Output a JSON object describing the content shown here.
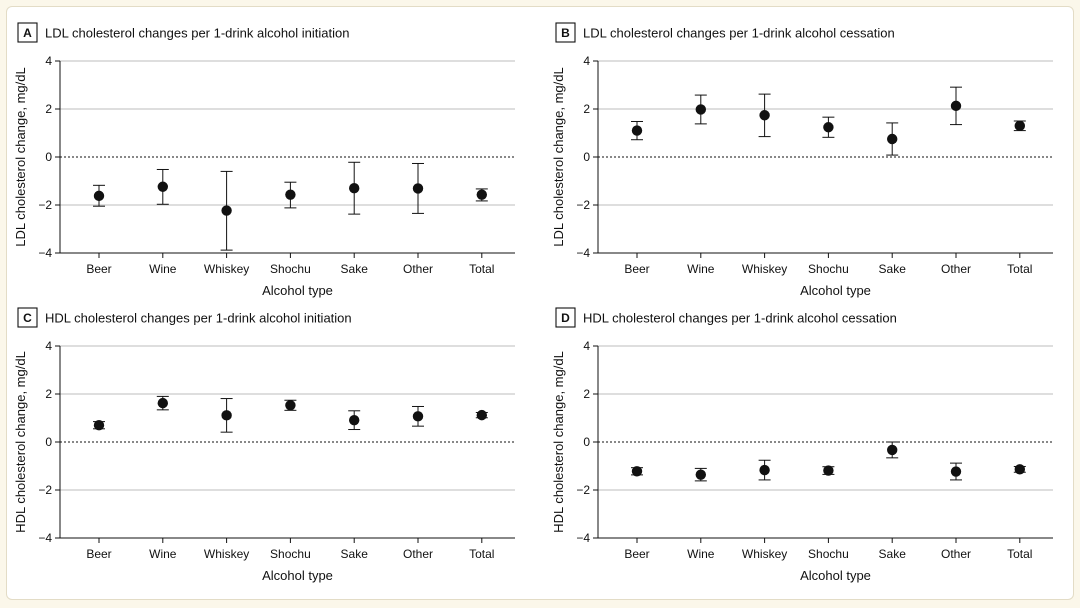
{
  "chart_data": [
    {
      "type": "scatter",
      "panel": "A",
      "title": "LDL cholesterol changes per 1-drink alcohol initiation",
      "xlabel": "Alcohol type",
      "ylabel": "LDL cholesterol change, mg/dL",
      "categories": [
        "Beer",
        "Wine",
        "Whiskey",
        "Shochu",
        "Sake",
        "Other",
        "Total"
      ],
      "values": [
        -1.62,
        -1.24,
        -2.23,
        -1.57,
        -1.3,
        -1.31,
        -1.57
      ],
      "ci_lower": [
        -2.05,
        -1.97,
        -3.88,
        -2.12,
        -2.38,
        -2.35,
        -1.83
      ],
      "ci_upper": [
        -1.18,
        -0.52,
        -0.6,
        -1.05,
        -0.22,
        -0.27,
        -1.33
      ],
      "ylim": [
        -4,
        4
      ],
      "yticks": [
        4,
        2,
        0,
        -2,
        -4
      ],
      "ytick_labels": [
        "4",
        "2",
        "0",
        "−2",
        "−4"
      ],
      "grid": true
    },
    {
      "type": "scatter",
      "panel": "B",
      "title": "LDL cholesterol changes per 1-drink alcohol cessation",
      "xlabel": "Alcohol type",
      "ylabel": "LDL cholesterol change, mg/dL",
      "categories": [
        "Beer",
        "Wine",
        "Whiskey",
        "Shochu",
        "Sake",
        "Other",
        "Total"
      ],
      "values": [
        1.1,
        1.98,
        1.74,
        1.24,
        0.75,
        2.13,
        1.3
      ],
      "ci_lower": [
        0.72,
        1.38,
        0.85,
        0.82,
        0.08,
        1.35,
        1.1
      ],
      "ci_upper": [
        1.48,
        2.58,
        2.62,
        1.66,
        1.42,
        2.91,
        1.5
      ],
      "ylim": [
        -4,
        4
      ],
      "yticks": [
        4,
        2,
        0,
        -2,
        -4
      ],
      "ytick_labels": [
        "4",
        "2",
        "0",
        "−2",
        "−4"
      ],
      "grid": true
    },
    {
      "type": "scatter",
      "panel": "C",
      "title": "HDL cholesterol changes per 1-drink alcohol initiation",
      "xlabel": "Alcohol type",
      "ylabel": "HDL cholesterol change, mg/dL",
      "categories": [
        "Beer",
        "Wine",
        "Whiskey",
        "Shochu",
        "Sake",
        "Other",
        "Total"
      ],
      "values": [
        0.7,
        1.62,
        1.11,
        1.53,
        0.91,
        1.07,
        1.12
      ],
      "ci_lower": [
        0.55,
        1.34,
        0.41,
        1.32,
        0.52,
        0.66,
        1.01
      ],
      "ci_upper": [
        0.85,
        1.9,
        1.81,
        1.74,
        1.3,
        1.48,
        1.23
      ],
      "ylim": [
        -4,
        4
      ],
      "yticks": [
        4,
        2,
        0,
        -2,
        -4
      ],
      "ytick_labels": [
        "4",
        "2",
        "0",
        "−2",
        "−4"
      ],
      "grid": true
    },
    {
      "type": "scatter",
      "panel": "D",
      "title": "HDL cholesterol changes per 1-drink alcohol cessation",
      "xlabel": "Alcohol type",
      "ylabel": "HDL cholesterol change, mg/dL",
      "categories": [
        "Beer",
        "Wine",
        "Whiskey",
        "Shochu",
        "Sake",
        "Other",
        "Total"
      ],
      "values": [
        -1.22,
        -1.36,
        -1.17,
        -1.19,
        -0.33,
        -1.23,
        -1.14
      ],
      "ci_lower": [
        -1.37,
        -1.62,
        -1.58,
        -1.35,
        -0.66,
        -1.58,
        -1.26
      ],
      "ci_upper": [
        -1.07,
        -1.1,
        -0.76,
        -1.03,
        0.0,
        -0.88,
        -1.02
      ],
      "ylim": [
        -4,
        4
      ],
      "yticks": [
        4,
        2,
        0,
        -2,
        -4
      ],
      "ytick_labels": [
        "4",
        "2",
        "0",
        "−2",
        "−4"
      ],
      "grid": true
    }
  ]
}
